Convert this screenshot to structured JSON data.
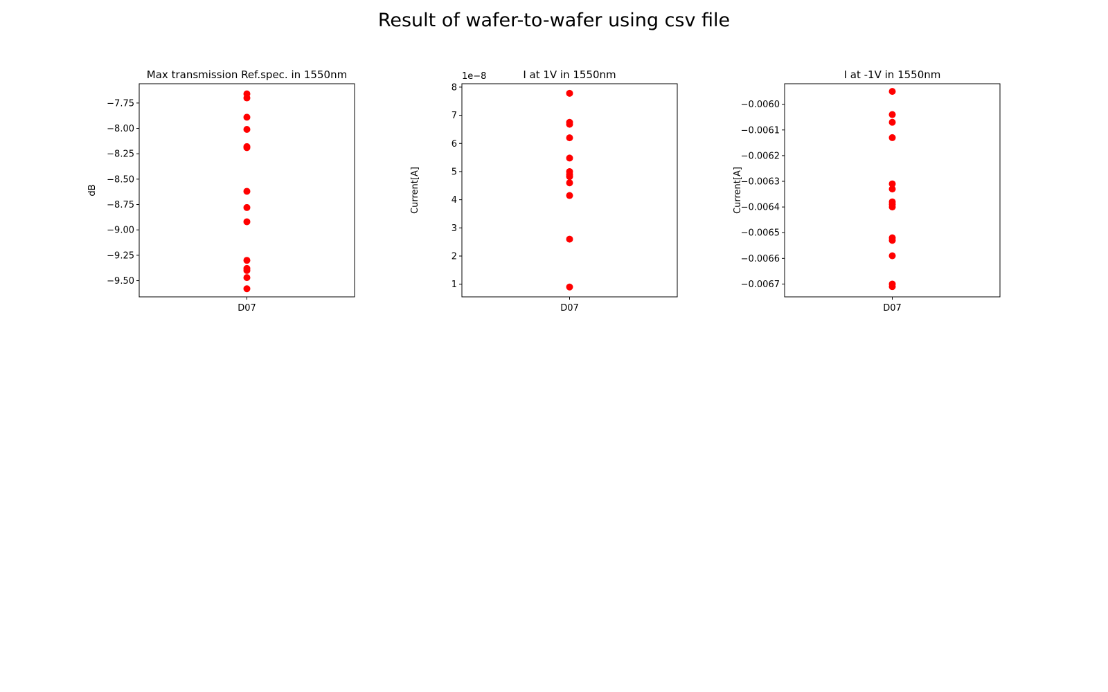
{
  "figure": {
    "title": "Result of wafer-to-wafer using csv file"
  },
  "chart_data": [
    {
      "type": "scatter",
      "title": "Max transmission Ref.spec. in 1550nm",
      "xlabel": "",
      "ylabel": "dB",
      "categories": [
        "D07"
      ],
      "ylim": [
        -9.66,
        -7.56
      ],
      "yticks": [
        -7.75,
        -8.0,
        -8.25,
        -8.5,
        -8.75,
        -9.0,
        -9.25,
        -9.5
      ],
      "yticklabels": [
        "−7.75",
        "−8.00",
        "−8.25",
        "−8.50",
        "−8.75",
        "−9.00",
        "−9.25",
        "−9.50"
      ],
      "offset_label": "",
      "color": "#ff0000",
      "series": [
        {
          "x": "D07",
          "values": [
            -7.66,
            -7.7,
            -7.89,
            -8.01,
            -8.18,
            -8.19,
            -8.62,
            -8.78,
            -8.92,
            -9.3,
            -9.38,
            -9.4,
            -9.47,
            -9.58
          ]
        }
      ]
    },
    {
      "type": "scatter",
      "title": "I at 1V in 1550nm",
      "xlabel": "",
      "ylabel": "Current[A]",
      "categories": [
        "D07"
      ],
      "ylim": [
        0.55,
        8.12
      ],
      "yticks": [
        1,
        2,
        3,
        4,
        5,
        6,
        7,
        8
      ],
      "yticklabels": [
        "1",
        "2",
        "3",
        "4",
        "5",
        "6",
        "7",
        "8"
      ],
      "offset_label": "1e−8",
      "color": "#ff0000",
      "series": [
        {
          "x": "D07",
          "values": [
            7.78,
            6.75,
            6.68,
            6.2,
            5.48,
            5.0,
            4.9,
            4.82,
            4.6,
            4.15,
            2.6,
            0.9
          ]
        }
      ]
    },
    {
      "type": "scatter",
      "title": "I at -1V in 1550nm",
      "xlabel": "",
      "ylabel": "Current[A]",
      "categories": [
        "D07"
      ],
      "ylim": [
        -0.00675,
        -0.00592
      ],
      "yticks": [
        -0.006,
        -0.0061,
        -0.0062,
        -0.0063,
        -0.0064,
        -0.0065,
        -0.0066,
        -0.0067
      ],
      "yticklabels": [
        "−0.0060",
        "−0.0061",
        "−0.0062",
        "−0.0063",
        "−0.0064",
        "−0.0065",
        "−0.0066",
        "−0.0067"
      ],
      "offset_label": "",
      "color": "#ff0000",
      "series": [
        {
          "x": "D07",
          "values": [
            -0.00595,
            -0.00604,
            -0.00607,
            -0.00613,
            -0.00631,
            -0.00633,
            -0.00638,
            -0.00639,
            -0.0064,
            -0.00652,
            -0.00653,
            -0.00659,
            -0.0067,
            -0.00671
          ]
        }
      ]
    }
  ]
}
